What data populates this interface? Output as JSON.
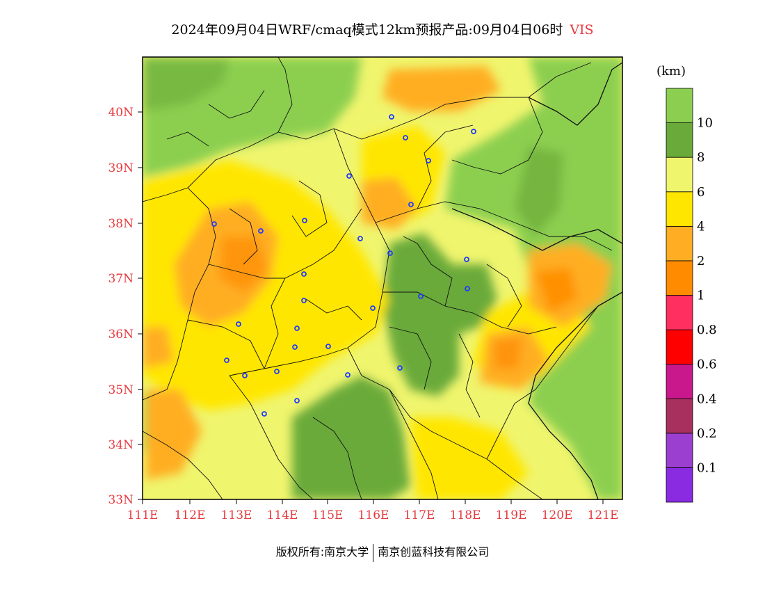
{
  "title": {
    "prefix": "2024年09月04日WRF/cmaq模式12km预报产品:09月04日06时",
    "variable": "VIS"
  },
  "legend": {
    "unit": "(km)",
    "colors": [
      "#8a2be2",
      "#9b3fd0",
      "#a8305e",
      "#c8188c",
      "#ff0000",
      "#ff3060",
      "#ff8c00",
      "#ffae23",
      "#ffe600",
      "#f0f56e",
      "#6aaa3a",
      "#8ccf50"
    ],
    "labels": [
      "0.1",
      "0.2",
      "0.4",
      "0.6",
      "0.8",
      "1",
      "2",
      "4",
      "6",
      "8",
      "10"
    ]
  },
  "axes": {
    "lat_labels": [
      "40N",
      "39N",
      "38N",
      "37N",
      "36N",
      "35N",
      "34N",
      "33N"
    ],
    "lon_labels": [
      "111E",
      "112E",
      "113E",
      "114E",
      "115E",
      "116E",
      "117E",
      "118E",
      "119E",
      "120E",
      "121E"
    ]
  },
  "footer": {
    "left": "版权所有:南京大学",
    "right": "南京创蓝科技有限公司"
  }
}
